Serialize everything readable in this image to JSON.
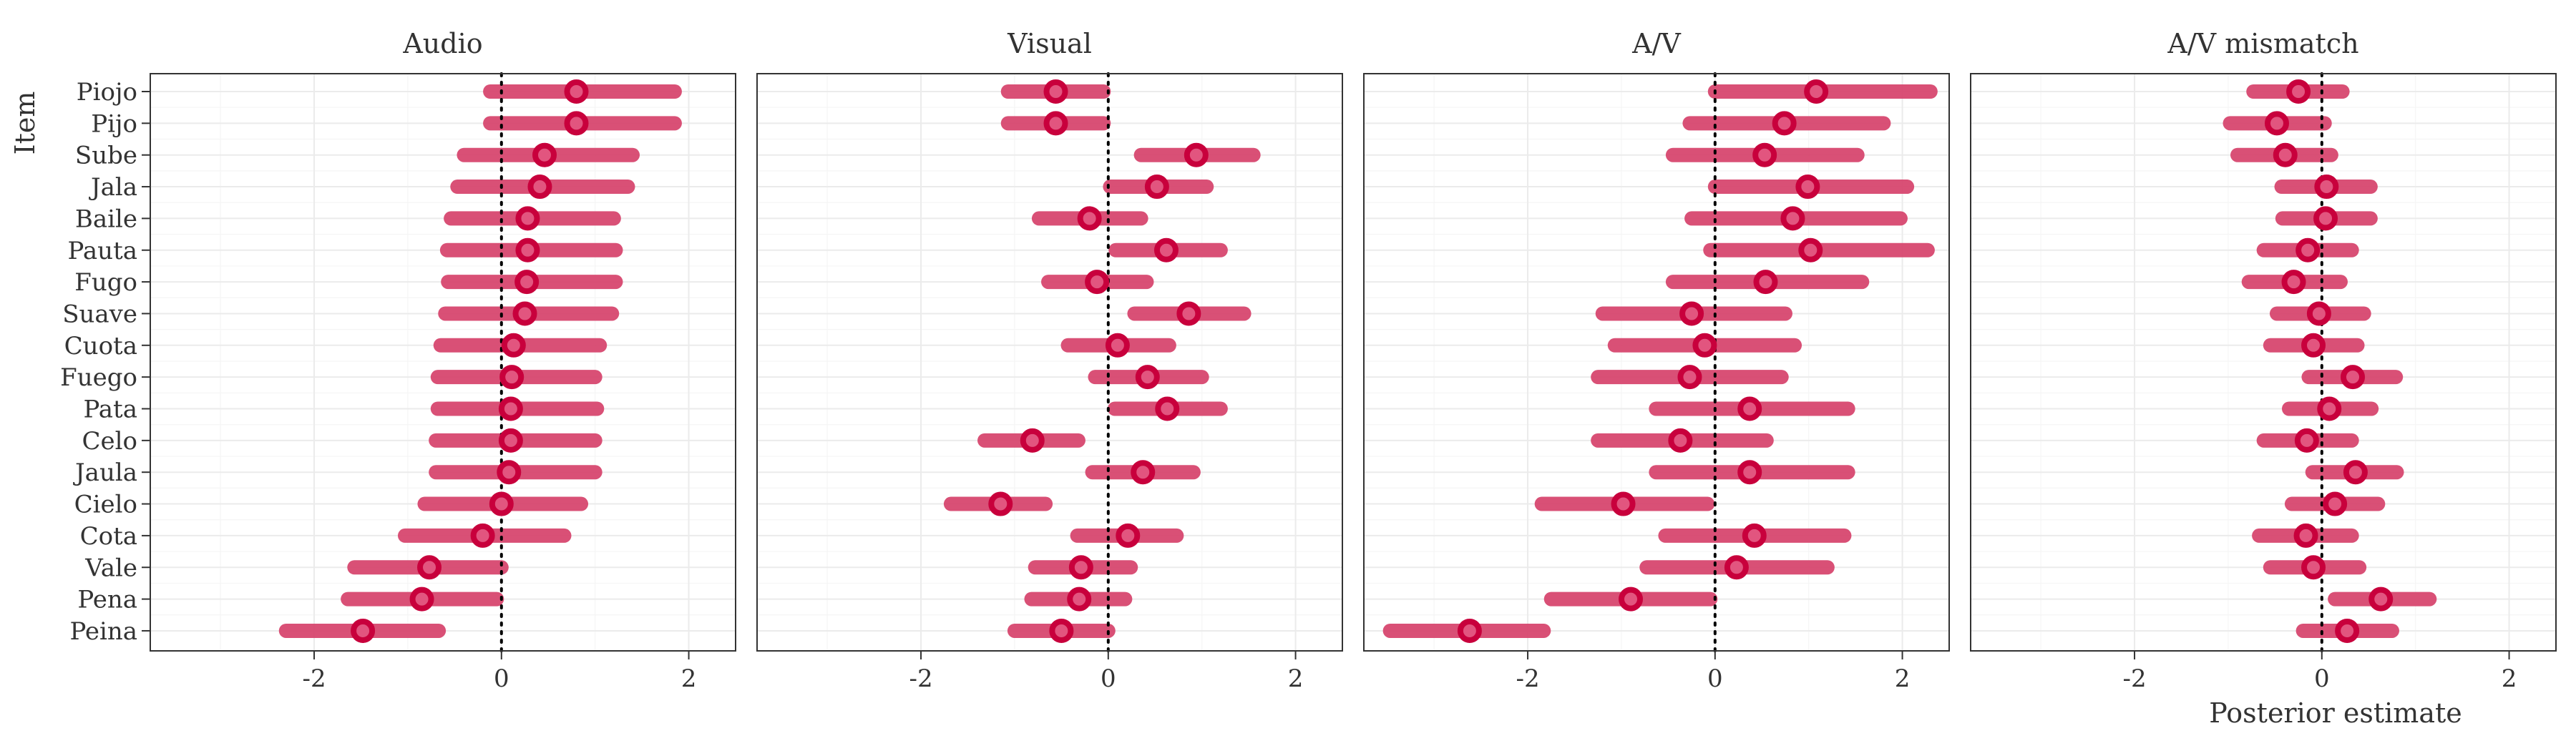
{
  "chart_data": {
    "type": "scatter",
    "subtype": "interval-forest-plot",
    "ylabel": "Item",
    "xlabel": "Posterior estimate",
    "xlim": [
      -3.75,
      2.5
    ],
    "xticks": [
      -2,
      0,
      2
    ],
    "x_tick_labels": [
      "-2",
      "0",
      "2"
    ],
    "reference_line_x": 0,
    "grid": true,
    "colors": {
      "interval": "#d6416a",
      "point_outline": "#c8003c",
      "point_fill": "#e2557f"
    },
    "items": [
      "Piojo",
      "Pijo",
      "Sube",
      "Jala",
      "Baile",
      "Pauta",
      "Fugo",
      "Suave",
      "Cuota",
      "Fuego",
      "Pata",
      "Celo",
      "Jaula",
      "Cielo",
      "Cota",
      "Vale",
      "Pena",
      "Peina"
    ],
    "panels": [
      {
        "title": "Audio",
        "estimate": [
          0.8,
          0.8,
          0.46,
          0.41,
          0.28,
          0.28,
          0.27,
          0.25,
          0.13,
          0.11,
          0.1,
          0.1,
          0.08,
          0.0,
          -0.2,
          -0.77,
          -0.85,
          -1.48
        ],
        "lower": [
          -0.12,
          -0.12,
          -0.4,
          -0.47,
          -0.54,
          -0.58,
          -0.57,
          -0.6,
          -0.65,
          -0.68,
          -0.68,
          -0.7,
          -0.7,
          -0.82,
          -1.03,
          -1.57,
          -1.64,
          -2.3
        ],
        "upper": [
          1.85,
          1.85,
          1.4,
          1.35,
          1.2,
          1.22,
          1.22,
          1.18,
          1.05,
          1.0,
          1.02,
          1.0,
          1.0,
          0.85,
          0.67,
          0.0,
          -0.05,
          -0.67
        ]
      },
      {
        "title": "Visual",
        "estimate": [
          -0.56,
          -0.56,
          0.94,
          0.52,
          -0.2,
          0.62,
          -0.12,
          0.86,
          0.1,
          0.42,
          0.63,
          -0.81,
          0.37,
          -1.15,
          0.21,
          -0.29,
          -0.31,
          -0.5
        ],
        "lower": [
          -1.07,
          -1.07,
          0.35,
          0.02,
          -0.74,
          0.08,
          -0.64,
          0.28,
          -0.43,
          -0.14,
          0.07,
          -1.32,
          -0.17,
          -1.68,
          -0.33,
          -0.78,
          -0.82,
          -1.0
        ],
        "upper": [
          -0.05,
          -0.05,
          1.55,
          1.05,
          0.35,
          1.2,
          0.41,
          1.45,
          0.65,
          1.0,
          1.2,
          -0.32,
          0.91,
          -0.67,
          0.73,
          0.24,
          0.18,
          0.0
        ]
      },
      {
        "title": "A/V",
        "estimate": [
          1.08,
          0.74,
          0.53,
          0.99,
          0.83,
          1.02,
          0.54,
          -0.25,
          -0.11,
          -0.27,
          0.37,
          -0.37,
          0.37,
          -0.98,
          0.42,
          0.23,
          -0.9,
          -2.62
        ],
        "lower": [
          0.0,
          -0.27,
          -0.45,
          0.0,
          -0.25,
          -0.05,
          -0.45,
          -1.2,
          -1.07,
          -1.25,
          -0.63,
          -1.25,
          -0.63,
          -1.85,
          -0.53,
          -0.73,
          -1.75,
          -3.47
        ],
        "upper": [
          2.3,
          1.8,
          1.52,
          2.05,
          1.98,
          2.27,
          1.57,
          0.75,
          0.85,
          0.71,
          1.42,
          0.55,
          1.42,
          -0.08,
          1.38,
          1.2,
          -0.05,
          -1.83
        ]
      },
      {
        "title": "A/V mismatch",
        "estimate": [
          -0.25,
          -0.48,
          -0.39,
          0.05,
          0.04,
          -0.15,
          -0.3,
          -0.03,
          -0.09,
          0.33,
          0.08,
          -0.16,
          0.36,
          0.14,
          -0.17,
          -0.09,
          0.63,
          0.27
        ],
        "lower": [
          -0.73,
          -0.98,
          -0.9,
          -0.43,
          -0.42,
          -0.62,
          -0.78,
          -0.48,
          -0.55,
          -0.14,
          -0.35,
          -0.62,
          -0.1,
          -0.32,
          -0.67,
          -0.55,
          0.14,
          -0.2
        ],
        "upper": [
          0.22,
          0.03,
          0.1,
          0.52,
          0.52,
          0.32,
          0.2,
          0.45,
          0.38,
          0.79,
          0.53,
          0.32,
          0.8,
          0.6,
          0.32,
          0.4,
          1.15,
          0.75
        ]
      }
    ]
  }
}
